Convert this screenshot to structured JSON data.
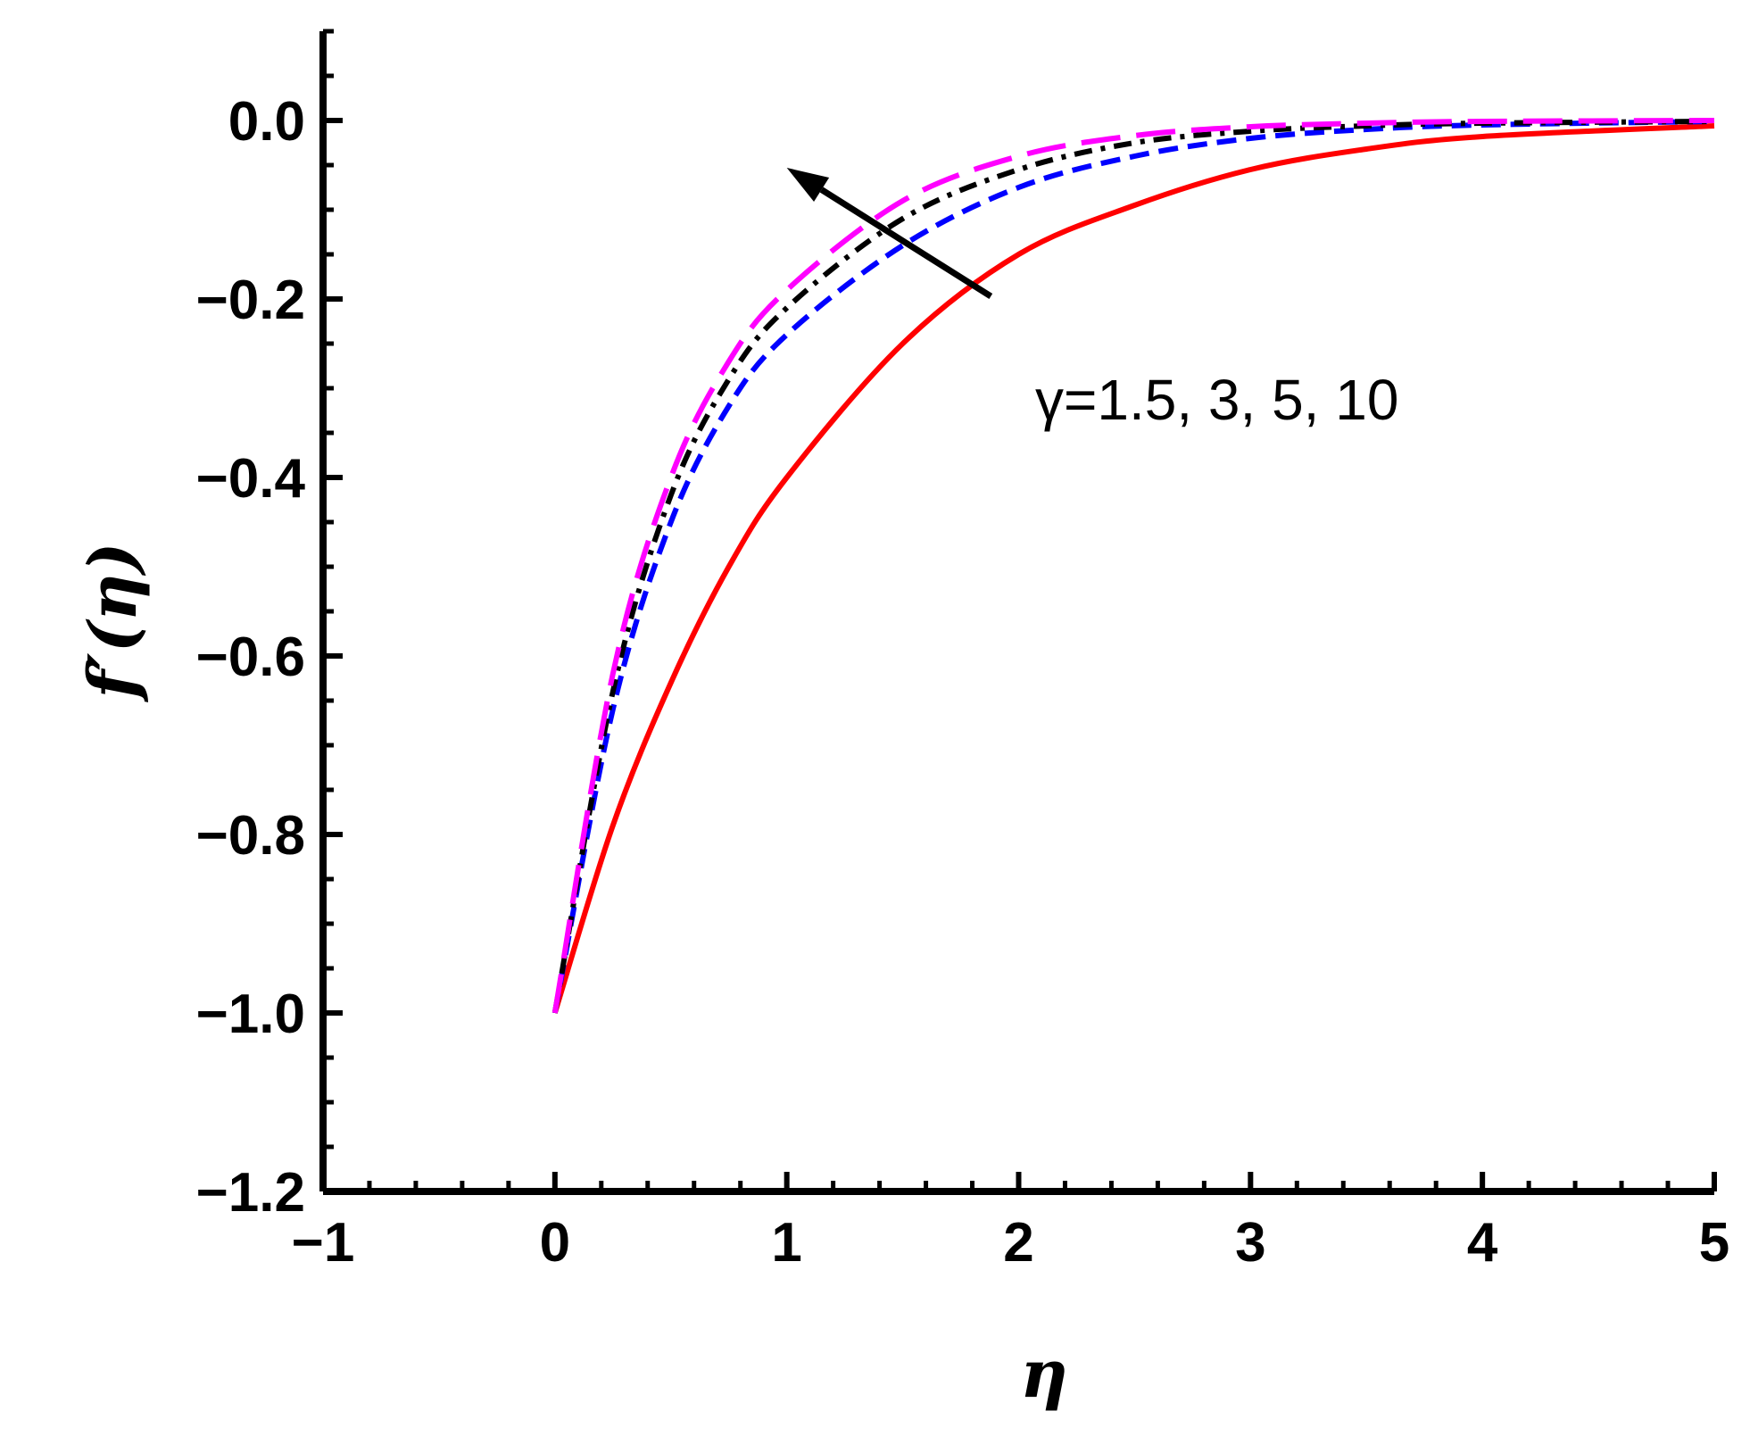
{
  "chart_data": {
    "type": "line",
    "xlabel": "η",
    "ylabel": "f′(η)",
    "xlim": [
      -1,
      5
    ],
    "ylim": [
      -1.2,
      0.1
    ],
    "x_ticks": [
      -1,
      0,
      1,
      2,
      3,
      4,
      5
    ],
    "x_tick_labels": [
      "−1",
      "0",
      "1",
      "2",
      "3",
      "4",
      "5"
    ],
    "y_ticks": [
      0.0,
      -0.2,
      -0.4,
      -0.6,
      -0.8,
      -1.0,
      -1.2
    ],
    "y_tick_labels": [
      "0.0",
      "−0.2",
      "−0.4",
      "−0.6",
      "−0.8",
      "−1.0",
      "−1.2"
    ],
    "annotation": "γ=1.5, 3, 5, 10",
    "colors": {
      "axis": "#000000",
      "s1": "#ff0000",
      "s2": "#0000ff",
      "s3": "#000000",
      "s4": "#ff00ff"
    },
    "series": [
      {
        "color": "#ff0000",
        "dash": "solid",
        "x": [
          0,
          0.25,
          0.5,
          0.75,
          1,
          1.5,
          2,
          2.5,
          3,
          3.5,
          4,
          5
        ],
        "y": [
          -1.0,
          -0.79,
          -0.63,
          -0.5,
          -0.4,
          -0.25,
          -0.15,
          -0.095,
          -0.055,
          -0.032,
          -0.018,
          -0.006
        ]
      },
      {
        "color": "#0000ff",
        "dash": "short",
        "x": [
          0,
          0.25,
          0.5,
          0.75,
          1,
          1.5,
          2,
          2.5,
          3,
          3.5,
          4,
          5
        ],
        "y": [
          -1.0,
          -0.66,
          -0.45,
          -0.32,
          -0.24,
          -0.14,
          -0.075,
          -0.04,
          -0.02,
          -0.01,
          -0.005,
          -0.001
        ]
      },
      {
        "color": "#000000",
        "dash": "dashdot",
        "x": [
          0,
          0.25,
          0.5,
          0.75,
          1,
          1.5,
          2,
          2.5,
          3,
          3.5,
          4,
          5
        ],
        "y": [
          -1.0,
          -0.64,
          -0.42,
          -0.29,
          -0.21,
          -0.11,
          -0.055,
          -0.025,
          -0.012,
          -0.006,
          -0.003,
          -0.001
        ]
      },
      {
        "color": "#ff00ff",
        "dash": "long",
        "x": [
          0,
          0.25,
          0.5,
          0.75,
          1,
          1.5,
          2,
          2.5,
          3,
          3.5,
          4,
          5
        ],
        "y": [
          -1.0,
          -0.62,
          -0.4,
          -0.27,
          -0.19,
          -0.09,
          -0.04,
          -0.017,
          -0.007,
          -0.003,
          -0.001,
          0.0
        ]
      }
    ],
    "arrow": {
      "from": [
        1.88,
        -0.197
      ],
      "to": [
        1.0,
        -0.053
      ]
    }
  }
}
